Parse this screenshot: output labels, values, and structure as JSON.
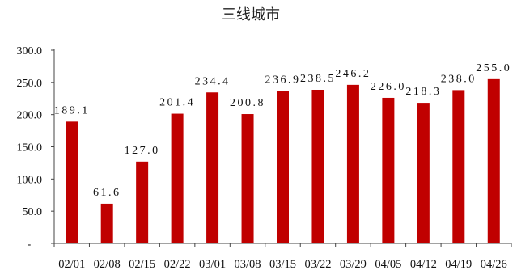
{
  "chart_data": {
    "type": "bar",
    "title": "三线城市",
    "xlabel": "",
    "ylabel": "",
    "ylim": [
      0,
      300
    ],
    "yticks": [
      {
        "value": 300,
        "label": "300.0"
      },
      {
        "value": 250,
        "label": "250.0"
      },
      {
        "value": 200,
        "label": "200.0"
      },
      {
        "value": 150,
        "label": "150.0"
      },
      {
        "value": 100,
        "label": "100.0"
      },
      {
        "value": 50,
        "label": "50.0"
      },
      {
        "value": 0,
        "label": "-"
      }
    ],
    "categories": [
      "02/01",
      "02/08",
      "02/15",
      "02/22",
      "03/01",
      "03/08",
      "03/15",
      "03/22",
      "03/29",
      "04/05",
      "04/12",
      "04/19",
      "04/26"
    ],
    "values": [
      189.1,
      61.6,
      127.0,
      201.4,
      234.4,
      200.8,
      236.9,
      238.5,
      246.2,
      226.0,
      218.3,
      238.0,
      255.0
    ],
    "data_labels": [
      "189.1",
      "61.6",
      "127.0",
      "201.4",
      "234.4",
      "200.8",
      "236.9",
      "238.5",
      "246.2",
      "226.0",
      "218.3",
      "238.0",
      "255.0"
    ],
    "bar_color": "#c00000",
    "grid": false,
    "legend": "none"
  }
}
